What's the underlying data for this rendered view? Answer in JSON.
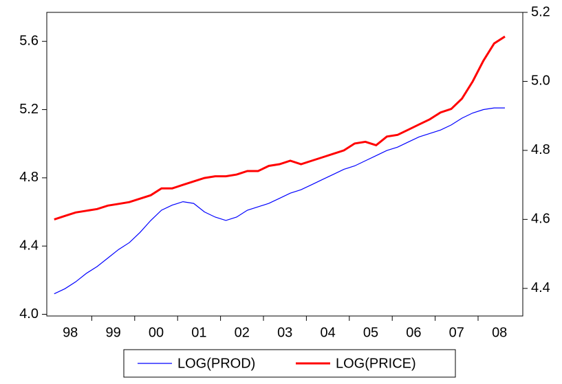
{
  "chart_data": {
    "type": "line",
    "categories": [
      null,
      null,
      "98",
      null,
      null,
      null,
      "99",
      null,
      null,
      null,
      "00",
      null,
      null,
      null,
      "01",
      null,
      null,
      null,
      "02",
      null,
      null,
      null,
      "03",
      null,
      null,
      null,
      "04",
      null,
      null,
      null,
      "05",
      null,
      null,
      null,
      "06",
      null,
      null,
      null,
      "07",
      null,
      null,
      null,
      "08"
    ],
    "series": [
      {
        "name": "LOG(PROD)",
        "color": "#0000ff",
        "axis": "y",
        "values": [
          4.12,
          4.15,
          4.19,
          4.24,
          4.28,
          4.33,
          4.38,
          4.42,
          4.48,
          4.55,
          4.61,
          4.64,
          4.66,
          4.65,
          4.6,
          4.57,
          4.55,
          4.57,
          4.61,
          4.63,
          4.65,
          4.68,
          4.71,
          4.73,
          4.76,
          4.79,
          4.82,
          4.85,
          4.87,
          4.9,
          4.93,
          4.96,
          4.98,
          5.01,
          5.04,
          5.06,
          5.08,
          5.11,
          5.15,
          5.18,
          5.2,
          5.21,
          5.21
        ]
      },
      {
        "name": "LOG(PRICE)",
        "color": "#ff0000",
        "axis": "y2",
        "values": [
          4.6,
          4.61,
          4.62,
          4.625,
          4.63,
          4.64,
          4.645,
          4.65,
          4.66,
          4.67,
          4.69,
          4.69,
          4.7,
          4.71,
          4.72,
          4.725,
          4.725,
          4.73,
          4.74,
          4.74,
          4.755,
          4.76,
          4.77,
          4.76,
          4.77,
          4.78,
          4.79,
          4.8,
          4.82,
          4.825,
          4.815,
          4.84,
          4.845,
          4.86,
          4.875,
          4.89,
          4.91,
          4.92,
          4.95,
          5.0,
          5.06,
          5.11,
          5.13
        ]
      }
    ],
    "ylim": [
      3.99,
      5.77
    ],
    "yticks": [
      {
        "value": 4,
        "label": "4.0"
      },
      4.4,
      4.8,
      5.2,
      5.6
    ],
    "y2lim": [
      4.32,
      5.2
    ],
    "y2ticks": [
      4.4,
      4.6,
      4.8,
      {
        "value": 5,
        "label": "5.0"
      },
      5.2
    ],
    "legend": "bottom"
  }
}
